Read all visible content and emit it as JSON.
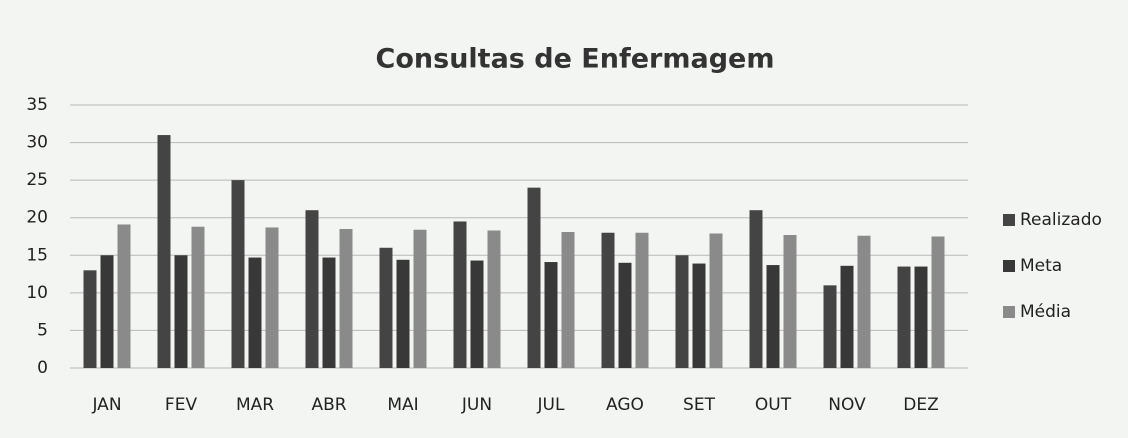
{
  "chart_data": {
    "type": "bar",
    "title": "Consultas de Enfermagem",
    "categories": [
      "JAN",
      "FEV",
      "MAR",
      "ABR",
      "MAI",
      "JUN",
      "JUL",
      "AGO",
      "SET",
      "OUT",
      "NOV",
      "DEZ"
    ],
    "series": [
      {
        "name": "Realizado",
        "color": "#444444",
        "values": [
          13,
          31,
          25,
          21,
          16,
          19.5,
          24,
          18,
          15,
          21,
          11,
          13.5
        ]
      },
      {
        "name": "Meta",
        "color": "#383838",
        "values": [
          15,
          15,
          14.7,
          14.7,
          14.4,
          14.3,
          14.1,
          14,
          13.9,
          13.7,
          13.6,
          13.5
        ]
      },
      {
        "name": "Média",
        "color": "#8a8a8a",
        "values": [
          19.1,
          18.8,
          18.7,
          18.5,
          18.4,
          18.3,
          18.1,
          18,
          17.9,
          17.7,
          17.6,
          17.5
        ]
      }
    ],
    "ylim": [
      0,
      35
    ],
    "yticks": [
      0,
      5,
      10,
      15,
      20,
      25,
      30,
      35
    ],
    "grid": true
  }
}
